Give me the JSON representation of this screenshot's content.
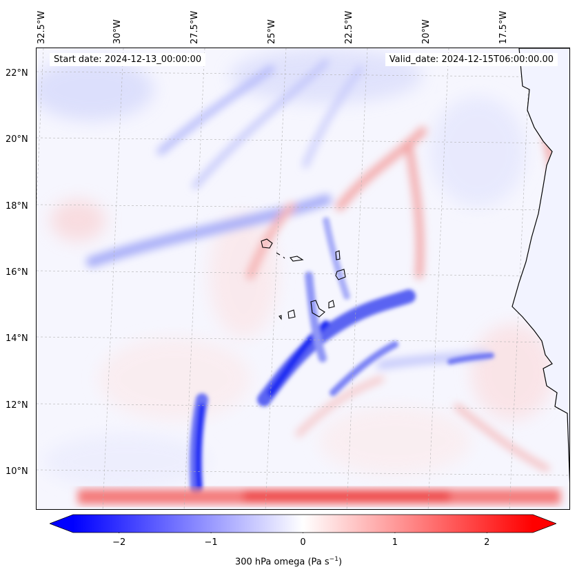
{
  "map": {
    "lon_labels": [
      "32.5°W",
      "30°W",
      "27.5°W",
      "25°W",
      "22.5°W",
      "20°W",
      "17.5°W"
    ],
    "lat_labels": [
      "22°N",
      "20°N",
      "18°N",
      "16°N",
      "14°N",
      "12°N",
      "10°N"
    ],
    "lon_range": [
      -32.5,
      -15.0
    ],
    "lat_range": [
      9.0,
      22.8
    ],
    "start_date": "Start date: 2024-12-13_00:00:00",
    "valid_date": "Valid_date: 2024-12-15T06:00:00.00",
    "variable": "300 hPa omega",
    "colormap": "bwr",
    "land_color": "#ffffff",
    "coastline_color": "#000000",
    "gridlines": true
  },
  "colorbar": {
    "ticks": [
      "−2",
      "−1",
      "0",
      "1",
      "2"
    ],
    "tick_values": [
      -2,
      -1,
      0,
      1,
      2
    ],
    "range": [
      -2.5,
      2.5
    ],
    "extend": "both",
    "label_main": "300 hPa omega (Pa s",
    "label_exp": "−1",
    "label_close": ")",
    "color_min": "#0000ff",
    "color_mid": "#ffffff",
    "color_max": "#ff0000"
  }
}
